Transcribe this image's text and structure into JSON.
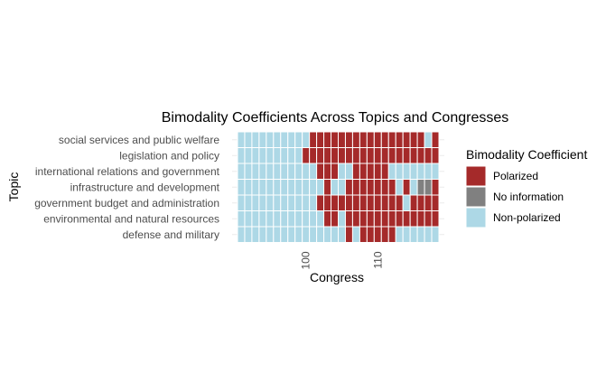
{
  "chart_data": {
    "type": "heatmap",
    "title": "Bimodality Coefficients Across Topics and Congresses",
    "xlabel": "Congress",
    "ylabel": "Topic",
    "x_start": 91,
    "x_end": 118,
    "x_ticks": [
      100,
      110
    ],
    "topics": [
      "social services and public welfare",
      "legislation and policy",
      "international relations and government",
      "infrastructure and development",
      "government budget and administration",
      "environmental and natural resources",
      "defense and military"
    ],
    "legend_title": "Bimodality Coefficient",
    "legend": [
      {
        "key": "P",
        "label": "Polarized",
        "color": "#a52a2a"
      },
      {
        "key": "N",
        "label": "No information",
        "color": "#808080"
      },
      {
        "key": "U",
        "label": "Non-polarized",
        "color": "#add8e6"
      }
    ],
    "grid": true,
    "legend_position": "right",
    "values": [
      "UUUUUUUUUUPPPPPPPPPPPPPPPPUP",
      "UUUUUUUUUPPPPPPPPPPPPPPPPPPP",
      "UUUUUUUUUUUPPPUUPPPPPUUUUUUU",
      "UUUUUUUUUUUUPUUPPPPPPPUPUNNP",
      "UUUUUUUUUUUPPPPPPPPPPPPUPPPP",
      "UUUUUUUUUUUUPPUPPPPPPPPPPPPP",
      "UUUUUUUUUUUUUUUPUPPPPPUUUUUU"
    ]
  }
}
